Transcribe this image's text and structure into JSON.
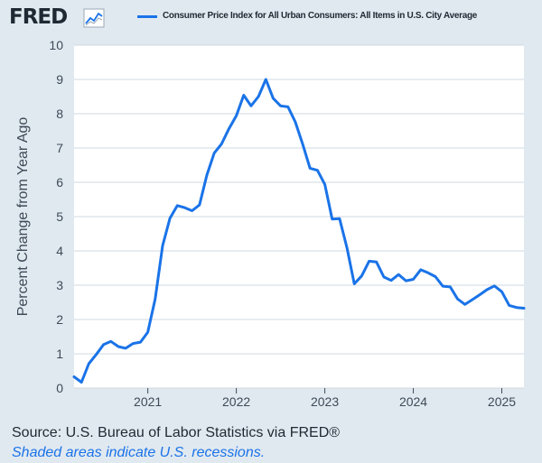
{
  "header": {
    "logo_text": "FRED",
    "logo_icon": "line-chart-icon",
    "legend_label": "Consumer Price Index for All Urban Consumers: All Items in U.S. City Average",
    "legend_color": "#1a73e8"
  },
  "footer": {
    "source": "Source: U.S. Bureau of Labor Statistics via FRED®",
    "note": "Shaded areas indicate U.S. recessions."
  },
  "chart_data": {
    "type": "line",
    "title": "",
    "xlabel": "",
    "ylabel": "Percent Change from Year Ago",
    "xlim": [
      "2020-03",
      "2025-04"
    ],
    "ylim": [
      0,
      10
    ],
    "yticks": [
      0,
      1,
      2,
      3,
      4,
      5,
      6,
      7,
      8,
      9,
      10
    ],
    "xticks": [
      {
        "label": "2021",
        "date": "2021-01"
      },
      {
        "label": "2022",
        "date": "2022-01"
      },
      {
        "label": "2023",
        "date": "2023-01"
      },
      {
        "label": "2024",
        "date": "2024-01"
      },
      {
        "label": "2025",
        "date": "2025-01"
      }
    ],
    "grid": true,
    "legend": "top",
    "series": [
      {
        "name": "Consumer Price Index for All Urban Consumers: All Items in U.S. City Average",
        "color": "#1a73e8",
        "x": [
          "2020-03",
          "2020-04",
          "2020-05",
          "2020-06",
          "2020-07",
          "2020-08",
          "2020-09",
          "2020-10",
          "2020-11",
          "2020-12",
          "2021-01",
          "2021-02",
          "2021-03",
          "2021-04",
          "2021-05",
          "2021-06",
          "2021-07",
          "2021-08",
          "2021-09",
          "2021-10",
          "2021-11",
          "2021-12",
          "2022-01",
          "2022-02",
          "2022-03",
          "2022-04",
          "2022-05",
          "2022-06",
          "2022-07",
          "2022-08",
          "2022-09",
          "2022-10",
          "2022-11",
          "2022-12",
          "2023-01",
          "2023-02",
          "2023-03",
          "2023-04",
          "2023-05",
          "2023-06",
          "2023-07",
          "2023-08",
          "2023-09",
          "2023-10",
          "2023-11",
          "2023-12",
          "2024-01",
          "2024-02",
          "2024-03",
          "2024-04",
          "2024-05",
          "2024-06",
          "2024-07",
          "2024-08",
          "2024-09",
          "2024-10",
          "2024-11",
          "2024-12",
          "2025-01",
          "2025-02",
          "2025-03",
          "2025-04"
        ],
        "y": [
          0.33,
          0.17,
          0.71,
          0.98,
          1.27,
          1.36,
          1.21,
          1.16,
          1.3,
          1.34,
          1.63,
          2.6,
          4.15,
          4.95,
          5.32,
          5.26,
          5.17,
          5.34,
          6.21,
          6.85,
          7.12,
          7.56,
          7.94,
          8.54,
          8.23,
          8.5,
          9.0,
          8.45,
          8.23,
          8.2,
          7.76,
          7.11,
          6.41,
          6.35,
          5.94,
          4.93,
          4.94,
          4.09,
          3.04,
          3.27,
          3.7,
          3.68,
          3.24,
          3.14,
          3.31,
          3.13,
          3.17,
          3.45,
          3.36,
          3.25,
          2.97,
          2.95,
          2.6,
          2.44,
          2.58,
          2.72,
          2.87,
          2.98,
          2.81,
          2.41,
          2.35,
          2.33
        ]
      }
    ]
  }
}
